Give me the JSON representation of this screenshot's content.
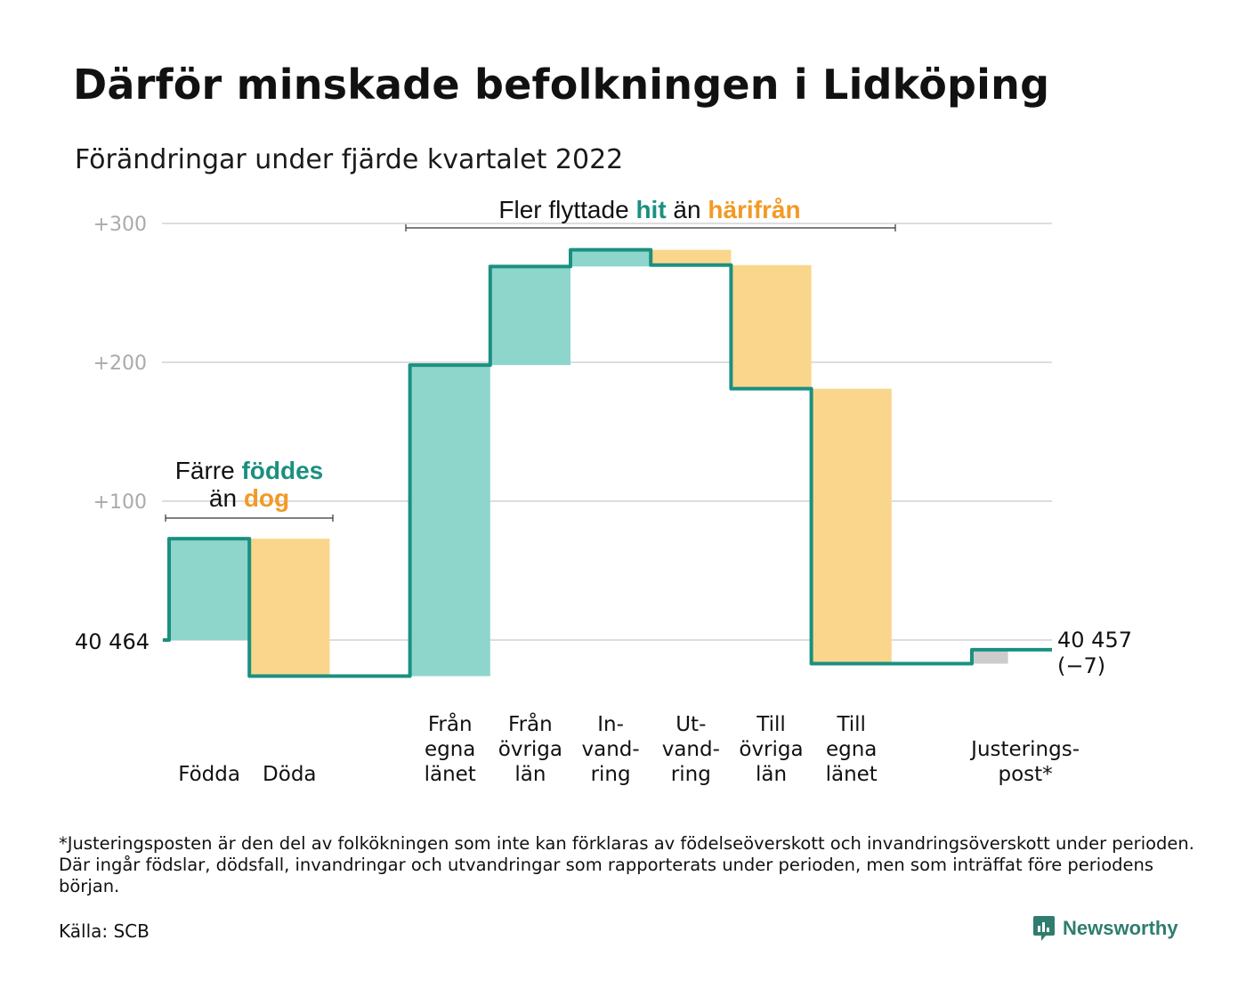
{
  "title": "Därför minskade befolkningen i Lidköping",
  "subtitle": "Förändringar under fjärde kvartalet 2022",
  "colors": {
    "inflow": "#8ed5cc",
    "outflow": "#fad68c",
    "adjustment": "#cccccc",
    "line": "#1a9080",
    "teal_text": "#1a9080",
    "orange_text": "#f29a26",
    "grid": "#dddddd",
    "tick": "#aaaaaa"
  },
  "annotations": {
    "births_deaths": {
      "line1_prefix": "Färre ",
      "line1_highlight": "föddes",
      "line2_prefix": "än ",
      "line2_highlight": "dog"
    },
    "migration": {
      "prefix": "Fler flyttade ",
      "highlight1": "hit",
      "middle": " än ",
      "highlight2": "härifrån"
    }
  },
  "chart_data": {
    "type": "waterfall",
    "start": {
      "label": "40 464",
      "value": 40464
    },
    "end": {
      "label_value": "40 457",
      "label_change": "(−7)",
      "value": 40457,
      "change": -7
    },
    "y_ticks": [
      {
        "label": "+300",
        "value": 300
      },
      {
        "label": "+200",
        "value": 200
      },
      {
        "label": "+100",
        "value": 100
      }
    ],
    "grid": true,
    "steps": [
      {
        "label_lines": [
          "Födda"
        ],
        "value": 73,
        "kind": "inflow"
      },
      {
        "label_lines": [
          "Döda"
        ],
        "value": -99,
        "kind": "outflow"
      },
      {
        "label_lines": [],
        "value": 0,
        "kind": "gap"
      },
      {
        "label_lines": [
          "Från",
          "egna",
          "länet"
        ],
        "value": 224,
        "kind": "inflow"
      },
      {
        "label_lines": [
          "Från",
          "övriga",
          "län"
        ],
        "value": 71,
        "kind": "inflow"
      },
      {
        "label_lines": [
          "In-",
          "vand-",
          "ring"
        ],
        "value": 12,
        "kind": "inflow"
      },
      {
        "label_lines": [
          "Ut-",
          "vand-",
          "ring"
        ],
        "value": -11,
        "kind": "outflow"
      },
      {
        "label_lines": [
          "Till",
          "övriga",
          "län"
        ],
        "value": -89,
        "kind": "outflow"
      },
      {
        "label_lines": [
          "Till",
          "egna",
          "länet"
        ],
        "value": -198,
        "kind": "outflow"
      },
      {
        "label_lines": [],
        "value": 0,
        "kind": "gap"
      },
      {
        "label_lines": [
          "Justerings-",
          "post*"
        ],
        "value": 10,
        "kind": "adjustment"
      }
    ]
  },
  "footnote": "*Justeringsposten är den del av folkökningen som inte kan förklaras av födelseöverskott och invandringsöverskott under perioden. Där ingår födslar, dödsfall, invandringar och utvandringar som rapporterats under perioden, men som inträffat före periodens början.",
  "source": "Källa: SCB",
  "brand": {
    "name": "Newsworthy",
    "logo_icon": "bar-chart-speech-bubble-icon"
  }
}
